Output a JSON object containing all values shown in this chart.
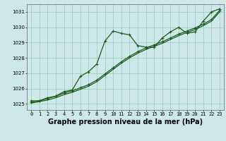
{
  "title": "Graphe pression niveau de la mer (hPa)",
  "bg_color": "#cce8e8",
  "grid_color": "#99ccbb",
  "line_color": "#1a5c1a",
  "marker": "+",
  "x_ticks": [
    0,
    1,
    2,
    3,
    4,
    5,
    6,
    7,
    8,
    9,
    10,
    11,
    12,
    13,
    14,
    15,
    16,
    17,
    18,
    19,
    20,
    21,
    22,
    23
  ],
  "y_ticks": [
    1025,
    1026,
    1027,
    1028,
    1029,
    1030,
    1031
  ],
  "ylim": [
    1024.6,
    1031.5
  ],
  "xlim": [
    -0.5,
    23.5
  ],
  "series1": [
    1025.2,
    1025.2,
    1025.4,
    1025.5,
    1025.8,
    1025.9,
    1026.8,
    1027.1,
    1027.6,
    1029.1,
    1029.75,
    1029.6,
    1029.5,
    1028.8,
    1028.7,
    1028.7,
    1029.3,
    1029.7,
    1030.0,
    1029.6,
    1029.7,
    1030.4,
    1031.0,
    1031.2
  ],
  "series2": [
    1025.1,
    1025.2,
    1025.35,
    1025.5,
    1025.7,
    1025.85,
    1026.05,
    1026.25,
    1026.55,
    1026.95,
    1027.35,
    1027.75,
    1028.1,
    1028.4,
    1028.65,
    1028.85,
    1029.05,
    1029.3,
    1029.55,
    1029.75,
    1029.95,
    1030.2,
    1030.5,
    1031.1
  ],
  "series3": [
    1025.05,
    1025.15,
    1025.25,
    1025.4,
    1025.6,
    1025.75,
    1025.95,
    1026.15,
    1026.45,
    1026.85,
    1027.25,
    1027.65,
    1028.0,
    1028.3,
    1028.55,
    1028.75,
    1028.95,
    1029.2,
    1029.45,
    1029.65,
    1029.85,
    1030.1,
    1030.4,
    1031.0
  ],
  "marker_size": 3.5,
  "line_width": 0.9,
  "title_fontsize": 7,
  "tick_fontsize": 5
}
